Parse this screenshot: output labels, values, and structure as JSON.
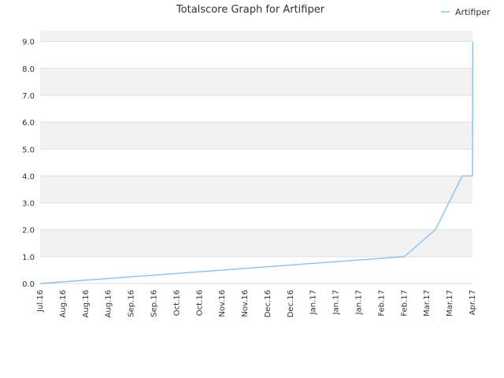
{
  "chart_data": {
    "type": "line",
    "title": "Totalscore Graph for Artifiper",
    "xlabel": "",
    "ylabel": "",
    "legend_position": "top-right",
    "grid": true,
    "series_color": "#90c4ee",
    "band_color": "#f2f2f2",
    "ylim": [
      0,
      9.4
    ],
    "y_ticks": [
      "0.0",
      "1.0",
      "2.0",
      "3.0",
      "4.0",
      "5.0",
      "6.0",
      "7.0",
      "8.0",
      "9.0"
    ],
    "x_ticks": [
      "Jul.16",
      "Aug.16",
      "Aug.16",
      "Aug.16",
      "Sep.16",
      "Sep.16",
      "Oct.16",
      "Oct.16",
      "Nov.16",
      "Nov.16",
      "Dec.16",
      "Dec.16",
      "Jan.17",
      "Jan.17",
      "Jan.17",
      "Feb.17",
      "Feb.17",
      "Mar.17",
      "Mar.17",
      "Apr.17"
    ],
    "series": [
      {
        "name": "Artifiper",
        "x": [
          0,
          16,
          17.37,
          18.55,
          19.0,
          19.01
        ],
        "y": [
          0,
          1.0,
          2.0,
          4.0,
          4.0,
          9.0
        ]
      }
    ]
  }
}
